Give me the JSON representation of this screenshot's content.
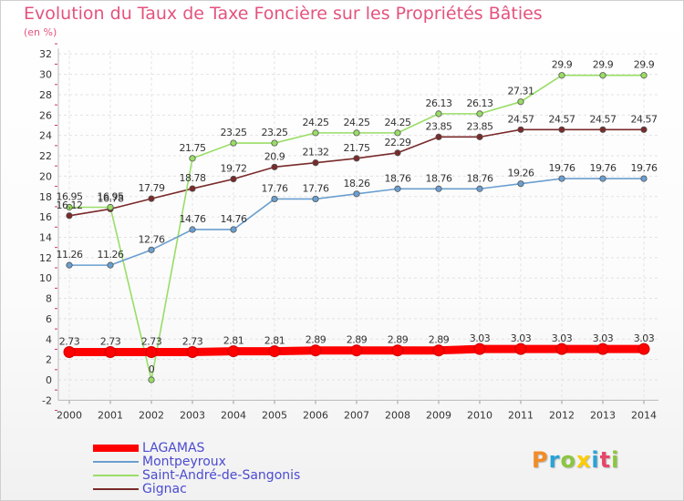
{
  "header": {
    "title": "Evolution du Taux de Taxe Foncière sur les Propriétés Bâties",
    "unit": "(en %)"
  },
  "logo": {
    "text": "Proxiti",
    "letters": [
      {
        "ch": "P",
        "color": "#f28c28"
      },
      {
        "ch": "r",
        "color": "#29a3d6"
      },
      {
        "ch": "o",
        "color": "#8cc63f"
      },
      {
        "ch": "x",
        "color": "#ffcc00"
      },
      {
        "ch": "i",
        "color": "#29a3d6"
      },
      {
        "ch": "t",
        "color": "#e8456b"
      },
      {
        "ch": "i",
        "color": "#8cc63f"
      }
    ]
  },
  "chart_data": {
    "type": "line",
    "title": "Evolution du Taux de Taxe Foncière sur les Propriétés Bâties",
    "ylabel": "(en %)",
    "xlabel": "",
    "x": [
      "2000",
      "2001",
      "2002",
      "2003",
      "2004",
      "2005",
      "2006",
      "2007",
      "2008",
      "2009",
      "2010",
      "2011",
      "2012",
      "2013",
      "2014"
    ],
    "ylim": [
      -2,
      32
    ],
    "yticks": [
      -2,
      0,
      2,
      4,
      6,
      8,
      10,
      12,
      14,
      16,
      18,
      20,
      22,
      24,
      26,
      28,
      30,
      32
    ],
    "grid": true,
    "legend_position": "bottom-left",
    "series": [
      {
        "name": "LAGAMAS",
        "color": "#ff0000",
        "values": [
          2.73,
          2.73,
          2.73,
          2.73,
          2.81,
          2.81,
          2.89,
          2.89,
          2.89,
          2.89,
          3.03,
          3.03,
          3.03,
          3.03,
          3.03
        ],
        "labels": [
          "2.73",
          "2.73",
          "2.73",
          "2.73",
          "2.81",
          "2.81",
          "2.89",
          "2.89",
          "2.89",
          "2.89",
          "3.03",
          "3.03",
          "3.03",
          "3.03",
          "3.03"
        ]
      },
      {
        "name": "Montpeyroux",
        "color": "#6a9fd0",
        "values": [
          11.26,
          11.26,
          12.76,
          14.76,
          14.76,
          17.76,
          17.76,
          18.26,
          18.76,
          18.76,
          18.76,
          19.26,
          19.76,
          19.76,
          19.76
        ],
        "labels": [
          "11.26",
          "11.26",
          "12.76",
          "14.76",
          "14.76",
          "17.76",
          "17.76",
          "18.26",
          "18.76",
          "18.76",
          "18.76",
          "19.26",
          "19.76",
          "19.76",
          "19.76"
        ]
      },
      {
        "name": "Saint-André-de-Sangonis",
        "color": "#99dd66",
        "values": [
          16.95,
          16.95,
          0,
          21.75,
          23.25,
          23.25,
          24.25,
          24.25,
          24.25,
          26.13,
          26.13,
          27.31,
          29.9,
          29.9,
          29.9
        ],
        "labels": [
          "16.95",
          "16.95",
          "0",
          "21.75",
          "23.25",
          "23.25",
          "24.25",
          "24.25",
          "24.25",
          "26.13",
          "26.13",
          "27.31",
          "29.9",
          "29.9",
          "29.9"
        ]
      },
      {
        "name": "Gignac",
        "color": "#7a2a2a",
        "values": [
          16.12,
          16.78,
          17.79,
          18.78,
          19.72,
          20.9,
          21.32,
          21.75,
          22.29,
          23.85,
          23.85,
          24.57,
          24.57,
          24.57,
          24.57
        ],
        "labels": [
          "16.12",
          "16.78",
          "17.79",
          "18.78",
          "19.72",
          "20.9",
          "21.32",
          "21.75",
          "22.29",
          "23.85",
          "23.85",
          "24.57",
          "24.57",
          "24.57",
          "24.57"
        ]
      }
    ]
  }
}
